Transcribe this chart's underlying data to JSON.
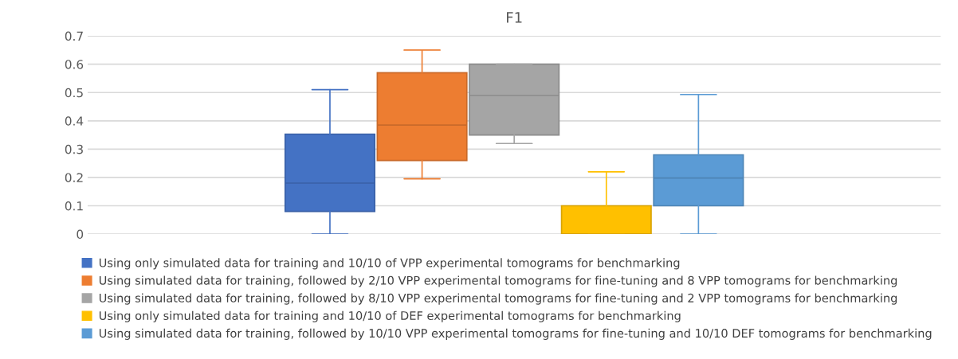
{
  "chart_data": {
    "type": "box",
    "title": "F1",
    "categories": [
      null
    ],
    "series": [
      {
        "name": "Using only simulated data for training and 10/10 of VPP experimental tomograms for benchmarking",
        "color": "#4472c4",
        "boxes": [
          {
            "low": 0,
            "q1": 0.08,
            "median": 0.18,
            "q3": 0.353,
            "high": 0.51
          }
        ]
      },
      {
        "name": "Using simulated data for training, followed by 2/10 VPP experimental tomograms for fine-tuning and 8 VPP tomograms for benchmarking",
        "color": "#ed7d31",
        "boxes": [
          {
            "low": 0.195,
            "q1": 0.26,
            "median": 0.385,
            "q3": 0.57,
            "high": 0.65
          }
        ]
      },
      {
        "name": "Using simulated data for training, followed by 8/10 VPP experimental tomograms for fine-tuning and 2 VPP tomograms for benchmarking",
        "color": "#a5a5a5",
        "boxes": [
          {
            "low": 0.32,
            "q1": 0.35,
            "median": 0.49,
            "q3": 0.6,
            "high": 0.6
          }
        ]
      },
      {
        "name": "Using only simulated data for training and 10/10 of DEF experimental tomograms for benchmarking",
        "color": "#ffc000",
        "boxes": [
          {
            "low": 0,
            "q1": 0,
            "median": 0,
            "q3": 0.1,
            "high": 0.22
          }
        ]
      },
      {
        "name": "Using simulated data for training, followed by 10/10 VPP experimental tomograms for fine-tuning and 10/10 DEF tomograms for benchmarking",
        "color": "#5b9bd5",
        "boxes": [
          {
            "low": 0,
            "q1": 0.1,
            "median": 0.198,
            "q3": 0.28,
            "high": 0.493
          }
        ]
      }
    ],
    "ylim": [
      0,
      0.7
    ],
    "yticks": [
      0,
      0.1,
      0.2,
      0.3,
      0.4,
      0.5,
      0.6,
      0.7
    ],
    "grid": "y",
    "legend": "bottom"
  }
}
